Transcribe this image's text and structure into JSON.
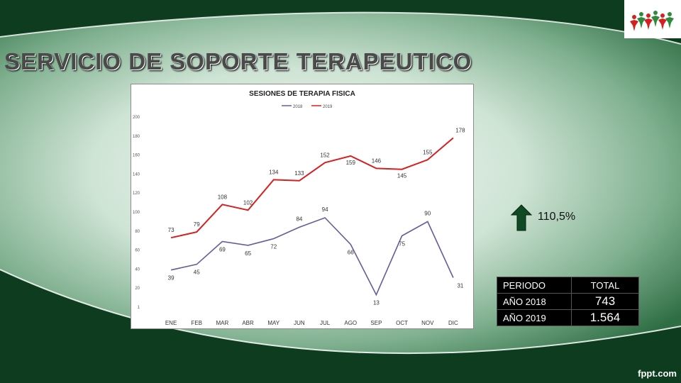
{
  "slide": {
    "title": "SERVICIO DE SOPORTE TERAPEUTICO",
    "footer": "fppt.com",
    "change_label": "110,5%",
    "colors": {
      "dark_green": "#0d3d1e",
      "arrow": "#0f4a24"
    },
    "icons": {
      "logo": "group-of-people-logo",
      "arrow": "up-arrow-icon"
    }
  },
  "table": {
    "headers": [
      "PERIODO",
      "TOTAL"
    ],
    "rows": [
      {
        "period": "AÑO 2018",
        "total": "743"
      },
      {
        "period": "AÑO 2019",
        "total": "1.564"
      }
    ]
  },
  "chart_data": {
    "type": "line",
    "title": "SESIONES DE TERAPIA FISICA",
    "categories": [
      "ENE",
      "FEB",
      "MAR",
      "ABR",
      "MAY",
      "JUN",
      "JUL",
      "AGO",
      "SEP",
      "OCT",
      "NOV",
      "DIC"
    ],
    "series": [
      {
        "name": "2018",
        "color": "#6a5a9a",
        "values": [
          39,
          45,
          69,
          65,
          72,
          84,
          94,
          66,
          13,
          75,
          90,
          31
        ]
      },
      {
        "name": "2019",
        "color": "#d62020",
        "values": [
          73,
          79,
          108,
          102,
          134,
          133,
          152,
          159,
          146,
          145,
          155,
          178
        ]
      }
    ],
    "yticks": [
      "1",
      "20",
      "40",
      "60",
      "80",
      "100",
      "120",
      "140",
      "160",
      "180",
      "200"
    ],
    "ylim": [
      0,
      200
    ],
    "legend_position": "top",
    "grid": false
  }
}
